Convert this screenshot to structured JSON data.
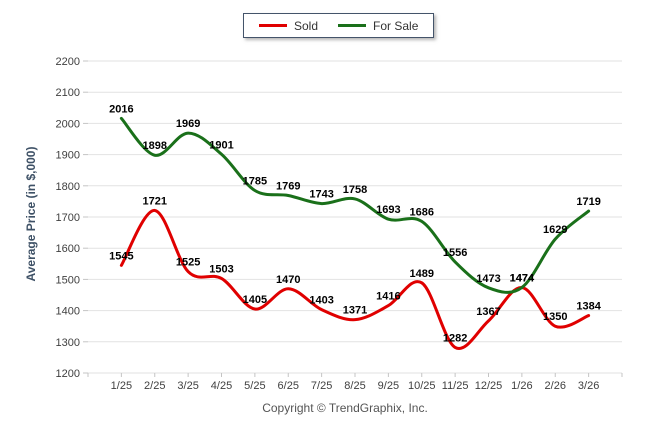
{
  "legend": {
    "items": [
      {
        "label": "Sold",
        "color": "#e00000"
      },
      {
        "label": "For Sale",
        "color": "#1a701a"
      }
    ]
  },
  "y_axis": {
    "title": "Average Price (in $,000)"
  },
  "footer": {
    "copyright": "Copyright © TrendGraphix, Inc."
  },
  "chart_data": {
    "type": "line",
    "categories": [
      "1/25",
      "2/25",
      "3/25",
      "4/25",
      "5/25",
      "6/25",
      "7/25",
      "8/25",
      "9/25",
      "10/25",
      "11/25",
      "12/25",
      "1/26",
      "2/26",
      "3/26"
    ],
    "series": [
      {
        "name": "Sold",
        "color": "#e00000",
        "values": [
          1545,
          1721,
          1525,
          1503,
          1405,
          1470,
          1403,
          1371,
          1416,
          1489,
          1282,
          1367,
          1474,
          1350,
          1384
        ]
      },
      {
        "name": "For Sale",
        "color": "#1a701a",
        "values": [
          2016,
          1898,
          1969,
          1901,
          1785,
          1769,
          1743,
          1758,
          1693,
          1686,
          1556,
          1473,
          1474,
          1629,
          1719
        ]
      }
    ],
    "title": "",
    "xlabel": "",
    "ylabel": "Average Price (in $,000)",
    "ylim": [
      1200,
      2200
    ],
    "ytick_step": 100,
    "grid": "horizontal",
    "legend_position": "top",
    "data_labels": true,
    "smooth": true,
    "colors": {
      "gridline": "#e2e2e2",
      "tick": "#c4c4c4",
      "axis_label": "#404040",
      "data_label": "#000000"
    }
  }
}
